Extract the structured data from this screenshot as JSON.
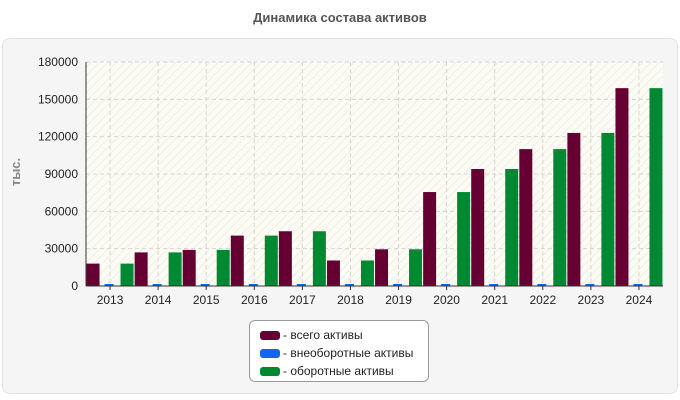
{
  "colors": {
    "total": "#660033",
    "noncurrent": "#1166ee",
    "current": "#008833"
  },
  "legend": {
    "total": "- всего активы",
    "noncurrent": "- внеоборотные активы",
    "current": "- оборотные активы"
  },
  "chart_data": {
    "type": "bar",
    "title": "Динамика состава активов",
    "xlabel": "",
    "ylabel": "тыс.",
    "ylim": [
      0,
      180000
    ],
    "yticks": [
      "0",
      "30000",
      "60000",
      "90000",
      "120000",
      "150000",
      "180000"
    ],
    "categories": [
      "2013",
      "2014",
      "2015",
      "2016",
      "2017",
      "2018",
      "2019",
      "2020",
      "2021",
      "2022",
      "2023",
      "2024"
    ],
    "series": [
      {
        "name": "всего активы",
        "values": [
          18000,
          27000,
          29000,
          40500,
          44000,
          20500,
          29500,
          75500,
          94000,
          110000,
          123000,
          159000
        ]
      },
      {
        "name": "внеоборотные активы",
        "values": [
          500,
          500,
          500,
          500,
          500,
          500,
          500,
          500,
          500,
          500,
          500,
          500
        ]
      },
      {
        "name": "оборотные активы",
        "values": [
          18000,
          27000,
          29000,
          40500,
          44000,
          20500,
          29500,
          75500,
          94000,
          110000,
          123000,
          159000
        ]
      }
    ],
    "grid": true,
    "legend_position": "bottom-center"
  }
}
